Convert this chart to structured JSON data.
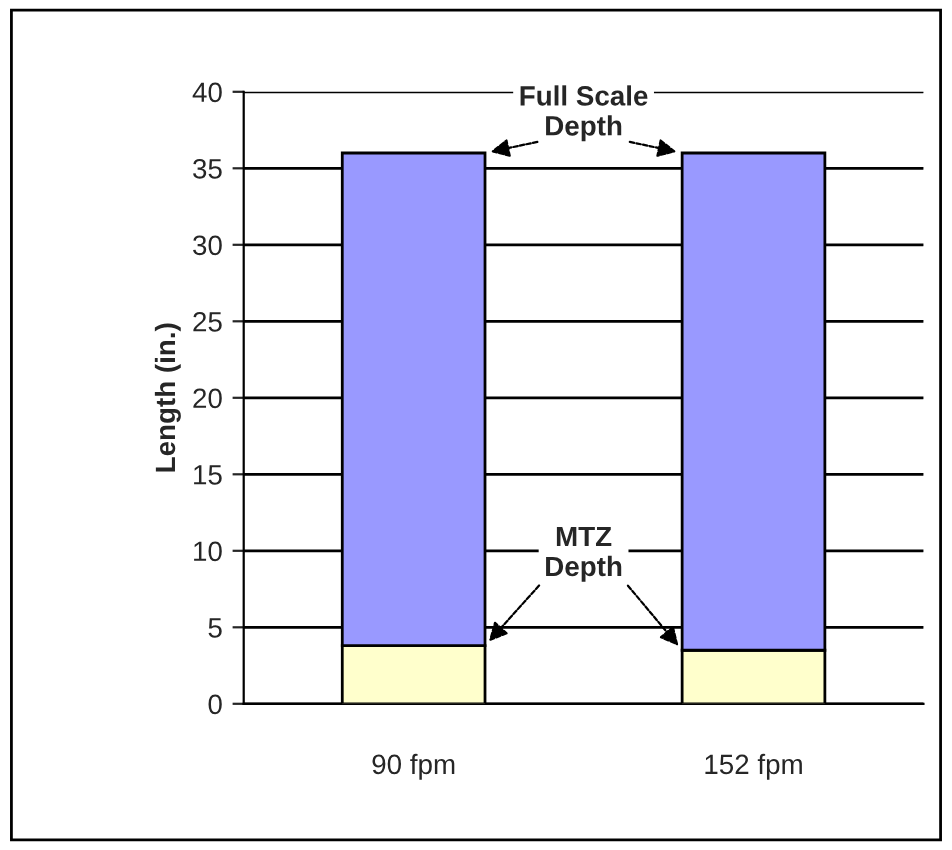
{
  "chart_data": {
    "type": "bar",
    "stacked": true,
    "categories": [
      "90 fpm",
      "152 fpm"
    ],
    "series": [
      {
        "color": "#ffffcc",
        "values": [
          3.8,
          3.5
        ]
      },
      {
        "color": "#9999ff",
        "values": [
          32.2,
          32.5
        ]
      }
    ],
    "ylabel": "Length (in.)",
    "ylim": [
      0,
      40
    ],
    "yticks": [
      0,
      5,
      10,
      15,
      20,
      25,
      30,
      35,
      40
    ],
    "grid": "y",
    "annotations": [
      "Full Scale\nDepth",
      "MTZ\nDepth"
    ]
  }
}
